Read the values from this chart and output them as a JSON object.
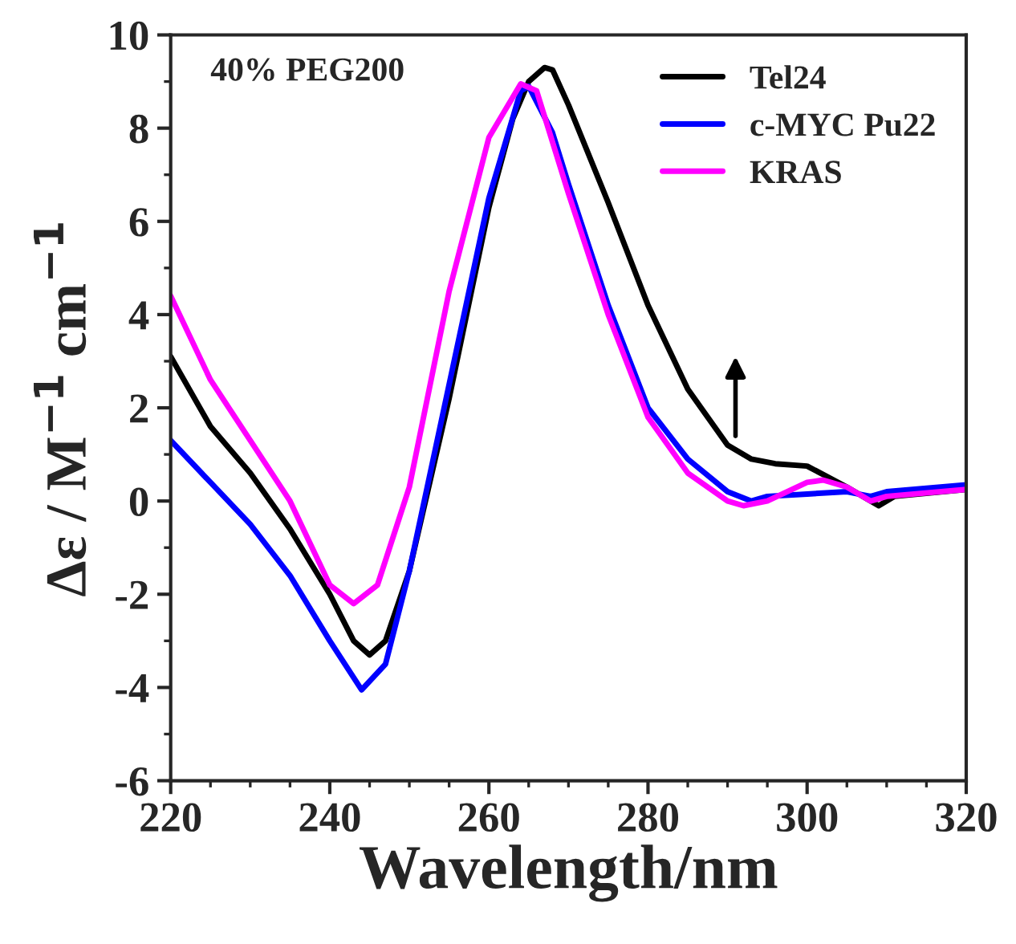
{
  "chart_data": {
    "type": "line",
    "xlabel": "Wavelength/nm",
    "ylabel": "Δε / M$^{−1}$ cm$^{−1}$",
    "annotations": [
      "40% PEG200"
    ],
    "xlim": [
      220,
      320
    ],
    "xticks": [
      220,
      240,
      260,
      280,
      300,
      320
    ],
    "ylim": [
      -6,
      10
    ],
    "yticks": [
      -6,
      -4,
      -2,
      0,
      2,
      4,
      6,
      8,
      10
    ],
    "grid": false,
    "legend": "top right",
    "marker": "none",
    "line_style": "solid",
    "series": [
      {
        "name": "Tel24",
        "color": "#000000",
        "x": [
          220,
          225,
          230,
          235,
          240,
          243,
          245,
          247,
          250,
          255,
          260,
          263,
          265,
          267,
          268,
          270,
          275,
          280,
          285,
          290,
          293,
          296,
          300,
          305,
          308,
          309,
          311,
          320
        ],
        "values": [
          3.1,
          1.6,
          0.6,
          -0.6,
          -2.0,
          -3.0,
          -3.3,
          -3.0,
          -1.5,
          2.2,
          6.3,
          8.2,
          9.0,
          9.3,
          9.25,
          8.5,
          6.4,
          4.2,
          2.4,
          1.2,
          0.9,
          0.8,
          0.75,
          0.3,
          0.0,
          -0.1,
          0.1,
          0.25
        ]
      },
      {
        "name": "c-MYC Pu22",
        "color": "#0000ff",
        "x": [
          220,
          225,
          230,
          235,
          240,
          244,
          247,
          250,
          255,
          260,
          264,
          265,
          268,
          270,
          275,
          280,
          285,
          290,
          293,
          295,
          300,
          305,
          308,
          310,
          320
        ],
        "values": [
          1.3,
          0.4,
          -0.5,
          -1.6,
          -3.0,
          -4.05,
          -3.5,
          -1.5,
          2.5,
          6.5,
          8.8,
          8.9,
          7.9,
          6.8,
          4.2,
          2.0,
          0.9,
          0.2,
          0.0,
          0.1,
          0.15,
          0.2,
          0.1,
          0.2,
          0.35
        ]
      },
      {
        "name": "KRAS",
        "color": "#ff00ff",
        "x": [
          220,
          225,
          230,
          235,
          240,
          243,
          246,
          250,
          255,
          260,
          264,
          266,
          270,
          275,
          280,
          285,
          290,
          292,
          295,
          300,
          302,
          305,
          308,
          310,
          320
        ],
        "values": [
          4.4,
          2.6,
          1.3,
          0.0,
          -1.8,
          -2.2,
          -1.8,
          0.3,
          4.5,
          7.8,
          8.95,
          8.8,
          6.6,
          4.0,
          1.8,
          0.6,
          0.0,
          -0.1,
          0.0,
          0.4,
          0.45,
          0.3,
          0.0,
          0.1,
          0.25
        ]
      }
    ]
  }
}
